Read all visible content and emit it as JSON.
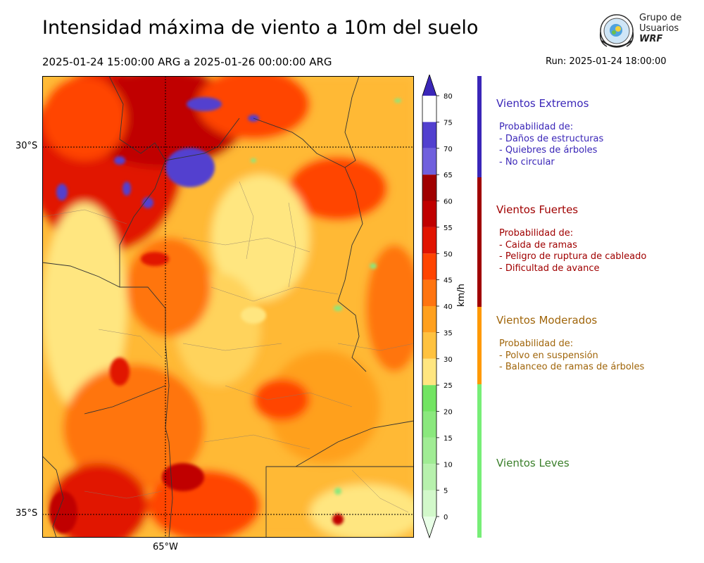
{
  "header": {
    "title": "Intensidad máxima de viento a 10m del suelo",
    "period": "2025-01-24 15:00:00 ARG  a  2025-01-26 00:00:00 ARG",
    "run": "Run: 2025-01-24 18:00:00"
  },
  "logo": {
    "line1": "Grupo de",
    "line2": "Usuarios",
    "line3": "WRF"
  },
  "axes": {
    "lat_top": "30°S",
    "lat_bottom": "35°S",
    "lon": "65°W"
  },
  "colorbar": {
    "unit": "km/h",
    "ticks": [
      "0",
      "5",
      "10",
      "15",
      "20",
      "25",
      "30",
      "35",
      "40",
      "45",
      "50",
      "55",
      "60",
      "65",
      "70",
      "75",
      "80"
    ],
    "colors": [
      "#e8ffe6",
      "#d2f8ca",
      "#b7f1ad",
      "#a0ec94",
      "#8ae87d",
      "#72e462",
      "#ffe680",
      "#ffc23f",
      "#ffa01e",
      "#ff7410",
      "#ff4400",
      "#e11400",
      "#c00000",
      "#a00000",
      "#7060dd",
      "#5240cf",
      "#3a26b8"
    ],
    "extend_color": "#3a26b8"
  },
  "categories": [
    {
      "title": "Vientos Extremos",
      "color": "#3a26b8",
      "lines": [
        "Probabilidad de:",
        "- Daños de estructuras",
        "- Quiebres de árboles",
        "- No circular"
      ]
    },
    {
      "title": "Vientos Fuertes",
      "color": "#a00000",
      "lines": [
        "Probabilidad de:",
        "- Caida de ramas",
        "- Peligro de ruptura de cableado",
        "- Dificultad de avance"
      ]
    },
    {
      "title": "Vientos Moderados",
      "color": "#ff9900",
      "text_color": "#a0650a",
      "lines": [
        "Probabilidad de:",
        "- Polvo en suspensión",
        "- Balanceo de ramas de árboles"
      ]
    },
    {
      "title": "Vientos Leves",
      "color": "#77ee77",
      "text_color": "#3a7f2a",
      "lines": []
    }
  ]
}
